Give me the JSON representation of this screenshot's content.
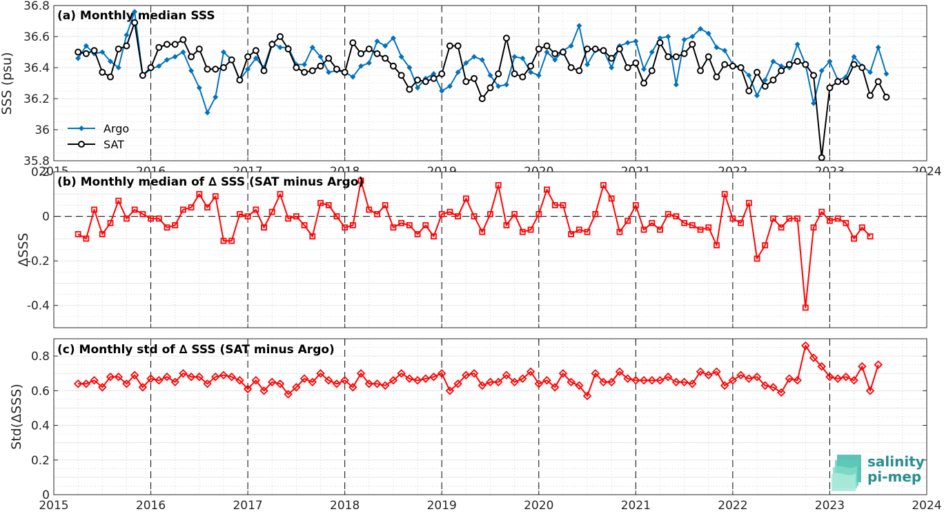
{
  "chart_data": [
    {
      "type": "line",
      "title": "(a) Monthly median SSS",
      "ylabel": "SSS (psu)",
      "ylim": [
        35.8,
        36.8
      ],
      "yticks": [
        "35.8",
        "36",
        "36.2",
        "36.4",
        "36.6",
        "36.8"
      ],
      "xlim": [
        2015,
        2024
      ],
      "xticks": [
        "2015",
        "2016",
        "2017",
        "2018",
        "2019",
        "2020",
        "2021",
        "2022",
        "2023",
        "2024"
      ],
      "legend": "bottom-left",
      "series": [
        {
          "name": "Argo",
          "color": "#0072BD",
          "marker": "diamond-filled",
          "x_start": "2015-04",
          "values": [
            36.46,
            36.54,
            36.49,
            36.5,
            36.44,
            36.4,
            36.61,
            36.76,
            36.35,
            36.39,
            36.41,
            36.45,
            36.47,
            36.5,
            36.38,
            36.27,
            36.11,
            36.21,
            36.5,
            36.45,
            36.32,
            36.39,
            36.46,
            36.4,
            36.56,
            36.53,
            36.53,
            36.42,
            36.42,
            36.53,
            36.47,
            36.37,
            36.38,
            36.37,
            36.34,
            36.41,
            36.43,
            36.57,
            36.54,
            36.59,
            36.47,
            36.4,
            36.27,
            36.33,
            36.36,
            36.25,
            36.28,
            36.37,
            36.43,
            36.47,
            36.45,
            36.35,
            36.28,
            36.29,
            36.47,
            36.46,
            36.37,
            36.35,
            36.5,
            36.45,
            36.51,
            36.54,
            36.67,
            36.42,
            36.51,
            36.51,
            36.4,
            36.54,
            36.56,
            36.57,
            36.39,
            36.5,
            36.59,
            36.6,
            36.29,
            36.58,
            36.6,
            36.65,
            36.62,
            36.53,
            36.51,
            36.42,
            36.4,
            36.35,
            36.22,
            36.32,
            36.44,
            36.41,
            36.4,
            36.55,
            36.42,
            36.17,
            36.38,
            36.44,
            36.32,
            36.34,
            36.47,
            36.41,
            36.37,
            36.53,
            36.36
          ]
        },
        {
          "name": "SAT",
          "color": "#000000",
          "marker": "circle-open",
          "x_start": "2015-04",
          "values": [
            36.5,
            36.49,
            36.51,
            36.37,
            36.34,
            36.52,
            36.54,
            36.69,
            36.35,
            36.4,
            36.53,
            36.55,
            36.55,
            36.58,
            36.47,
            36.52,
            36.39,
            36.39,
            36.4,
            36.45,
            36.32,
            36.47,
            36.51,
            36.38,
            36.55,
            36.6,
            36.52,
            36.4,
            36.37,
            36.38,
            36.41,
            36.46,
            36.39,
            36.37,
            36.56,
            36.49,
            36.52,
            36.49,
            36.46,
            36.41,
            36.35,
            36.26,
            36.32,
            36.31,
            36.33,
            36.36,
            36.54,
            36.54,
            36.31,
            36.33,
            36.2,
            36.27,
            36.36,
            36.59,
            36.36,
            36.34,
            36.41,
            36.52,
            36.54,
            36.49,
            36.5,
            36.4,
            36.38,
            36.52,
            36.52,
            36.51,
            36.46,
            36.52,
            36.4,
            36.43,
            36.3,
            36.38,
            36.56,
            36.47,
            36.47,
            36.49,
            36.55,
            36.38,
            36.47,
            36.34,
            36.42,
            36.41,
            36.4,
            36.25,
            36.37,
            36.28,
            36.32,
            36.38,
            36.42,
            36.44,
            36.42,
            36.35,
            35.82,
            36.27,
            36.31,
            36.31,
            36.42,
            36.4,
            36.22,
            36.31,
            36.21
          ]
        }
      ]
    },
    {
      "type": "line",
      "title": "(b) Monthly median of ∆ SSS (SAT minus Argo)",
      "ylabel": "ΔSSS",
      "ylim": [
        -0.5,
        0.2
      ],
      "yticks": [
        "-0.4",
        "-0.2",
        "0",
        "0.2"
      ],
      "xlim": [
        2015,
        2024
      ],
      "xticks": [],
      "zero_line": true,
      "series": [
        {
          "color": "#ff0000",
          "marker": "square-open",
          "x_start": "2015-04",
          "values": [
            -0.08,
            -0.1,
            0.03,
            -0.08,
            -0.03,
            0.07,
            -0.01,
            0.03,
            0.01,
            -0.01,
            -0.01,
            -0.05,
            -0.04,
            0.03,
            0.04,
            0.1,
            0.04,
            0.09,
            -0.11,
            -0.11,
            0.01,
            0.0,
            0.03,
            -0.05,
            0.02,
            0.1,
            -0.01,
            0.0,
            -0.04,
            -0.09,
            0.06,
            0.05,
            0.0,
            -0.05,
            -0.04,
            0.16,
            0.03,
            0.01,
            0.05,
            -0.05,
            -0.03,
            -0.04,
            -0.08,
            -0.04,
            -0.09,
            0.01,
            0.02,
            0.0,
            0.08,
            0.0,
            -0.07,
            0.01,
            0.14,
            -0.04,
            0.01,
            -0.07,
            -0.06,
            0.01,
            0.12,
            0.05,
            0.05,
            -0.08,
            -0.06,
            -0.07,
            0.01,
            0.14,
            0.08,
            -0.07,
            -0.02,
            0.05,
            -0.06,
            -0.03,
            -0.06,
            0.01,
            0.0,
            -0.03,
            -0.04,
            -0.06,
            -0.05,
            -0.13,
            0.1,
            -0.01,
            -0.03,
            0.06,
            -0.19,
            -0.13,
            -0.01,
            -0.05,
            -0.01,
            -0.01,
            -0.41,
            -0.05,
            0.02,
            -0.02,
            -0.01,
            -0.03,
            -0.1,
            -0.05,
            -0.09
          ]
        }
      ]
    },
    {
      "type": "line",
      "title": "(c) Monthly std of ∆ SSS (SAT minus Argo)",
      "ylabel": "Std(ΔSSS)",
      "ylim": [
        0,
        0.9
      ],
      "yticks": [
        "0",
        "0.2",
        "0.4",
        "0.6",
        "0.8"
      ],
      "xlim": [
        2015,
        2024
      ],
      "xticks": [
        "2015",
        "2016",
        "2017",
        "2018",
        "2019",
        "2020",
        "2021",
        "2022",
        "2023",
        "2024"
      ],
      "series": [
        {
          "color": "#ff0000",
          "marker": "diamond-open",
          "x_start": "2015-04",
          "values": [
            0.64,
            0.64,
            0.66,
            0.62,
            0.68,
            0.68,
            0.64,
            0.69,
            0.62,
            0.67,
            0.66,
            0.68,
            0.65,
            0.7,
            0.68,
            0.68,
            0.64,
            0.68,
            0.69,
            0.68,
            0.66,
            0.61,
            0.66,
            0.6,
            0.65,
            0.64,
            0.58,
            0.62,
            0.67,
            0.65,
            0.7,
            0.66,
            0.64,
            0.66,
            0.62,
            0.7,
            0.64,
            0.64,
            0.63,
            0.66,
            0.7,
            0.67,
            0.66,
            0.67,
            0.68,
            0.7,
            0.6,
            0.64,
            0.69,
            0.7,
            0.63,
            0.65,
            0.65,
            0.69,
            0.65,
            0.67,
            0.71,
            0.64,
            0.66,
            0.62,
            0.7,
            0.65,
            0.63,
            0.57,
            0.7,
            0.65,
            0.65,
            0.71,
            0.67,
            0.66,
            0.66,
            0.66,
            0.66,
            0.68,
            0.65,
            0.65,
            0.64,
            0.71,
            0.69,
            0.71,
            0.63,
            0.66,
            0.69,
            0.67,
            0.68,
            0.63,
            0.62,
            0.59,
            0.67,
            0.66,
            0.86,
            0.79,
            0.74,
            0.68,
            0.67,
            0.68,
            0.66,
            0.74,
            0.6,
            0.75
          ]
        }
      ]
    }
  ],
  "logo": {
    "line1": "salinity",
    "line2": "pi-mep",
    "color": "#2a8d8f"
  }
}
